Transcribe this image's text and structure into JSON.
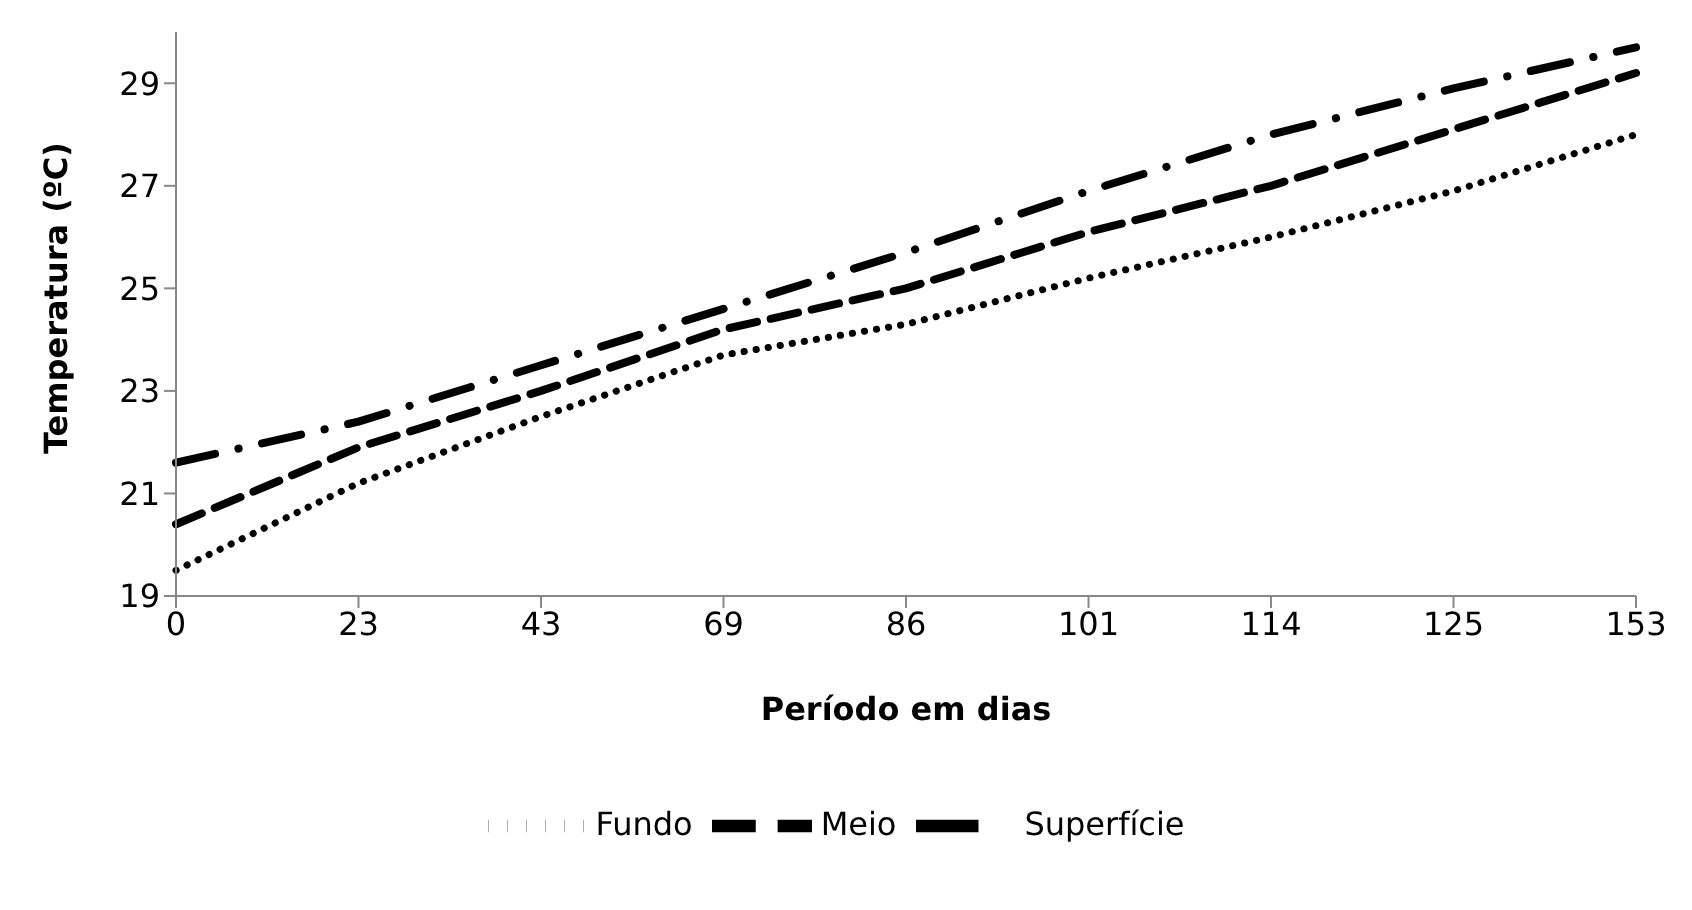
{
  "chart_data": {
    "type": "line",
    "xlabel": "Período em dias",
    "ylabel": "Temperatura (ºC)",
    "categories": [
      "0",
      "23",
      "43",
      "69",
      "86",
      "101",
      "114",
      "125",
      "153"
    ],
    "ylim": [
      19,
      30
    ],
    "yticks": [
      19,
      21,
      23,
      25,
      27,
      29
    ],
    "grid": false,
    "legend": "bottom",
    "marker": "none",
    "series": [
      {
        "name": "Fundo",
        "color": "#000000",
        "line_style": "dotted",
        "values": [
          19.5,
          21.2,
          22.5,
          23.7,
          24.3,
          25.2,
          26.0,
          26.9,
          28.0
        ]
      },
      {
        "name": "Meio",
        "color": "#000000",
        "line_style": "dashed",
        "values": [
          20.4,
          21.9,
          23.0,
          24.2,
          25.0,
          26.1,
          27.0,
          28.1,
          29.2
        ]
      },
      {
        "name": "Superfície",
        "color": "#000000",
        "line_style": "dashdot",
        "values": [
          21.6,
          22.4,
          23.5,
          24.6,
          25.7,
          26.9,
          28.0,
          28.9,
          29.7
        ]
      }
    ]
  }
}
